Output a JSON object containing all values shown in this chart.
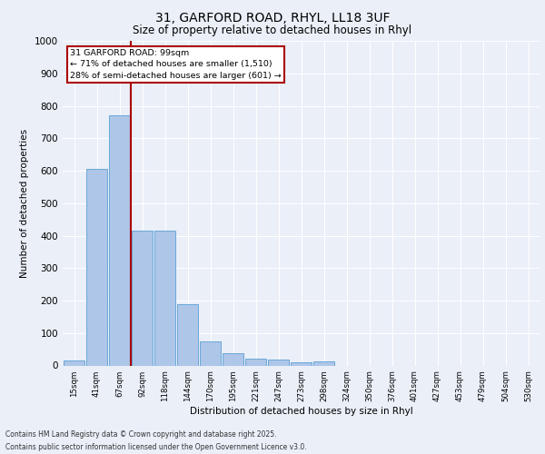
{
  "title_line1": "31, GARFORD ROAD, RHYL, LL18 3UF",
  "title_line2": "Size of property relative to detached houses in Rhyl",
  "xlabel": "Distribution of detached houses by size in Rhyl",
  "ylabel": "Number of detached properties",
  "categories": [
    "15sqm",
    "41sqm",
    "67sqm",
    "92sqm",
    "118sqm",
    "144sqm",
    "170sqm",
    "195sqm",
    "221sqm",
    "247sqm",
    "273sqm",
    "298sqm",
    "324sqm",
    "350sqm",
    "376sqm",
    "401sqm",
    "427sqm",
    "453sqm",
    "479sqm",
    "504sqm",
    "530sqm"
  ],
  "values": [
    15,
    605,
    770,
    415,
    415,
    190,
    75,
    38,
    20,
    17,
    10,
    12,
    0,
    0,
    0,
    0,
    0,
    0,
    0,
    0,
    0
  ],
  "bar_color": "#aec6e8",
  "bar_edge_color": "#5a9fd4",
  "annotation_line1": "31 GARFORD ROAD: 99sqm",
  "annotation_line2": "← 71% of detached houses are smaller (1,510)",
  "annotation_line3": "28% of semi-detached houses are larger (601) →",
  "vline_index": 2,
  "vline_color": "#aa0000",
  "annotation_box_color": "#aa0000",
  "ylim": [
    0,
    1000
  ],
  "yticks": [
    0,
    100,
    200,
    300,
    400,
    500,
    600,
    700,
    800,
    900,
    1000
  ],
  "background_color": "#eaeff8",
  "grid_color": "#d0d8e8",
  "footer_line1": "Contains HM Land Registry data © Crown copyright and database right 2025.",
  "footer_line2": "Contains public sector information licensed under the Open Government Licence v3.0."
}
